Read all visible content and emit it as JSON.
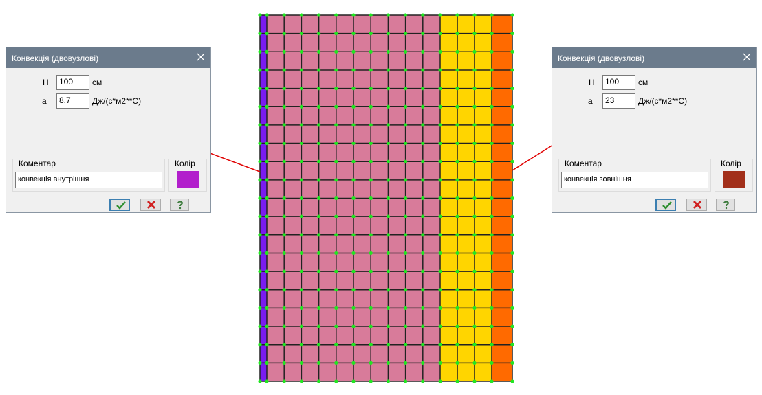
{
  "dialogs": [
    {
      "title": "Конвекція (двовузлові)",
      "fields": [
        {
          "label": "H",
          "value": "100",
          "unit": "см"
        },
        {
          "label": "а",
          "value": "8.7",
          "unit": "Дж/(с*м2**С)"
        }
      ],
      "comment_label": "Коментар",
      "comment": "конвекція внутрішня",
      "color_label": "Колір"
    },
    {
      "title": "Конвекція (двовузлові)",
      "fields": [
        {
          "label": "H",
          "value": "100",
          "unit": "см"
        },
        {
          "label": "а",
          "value": "23",
          "unit": "Дж/(с*м2**С)"
        }
      ],
      "comment_label": "Коментар",
      "comment": "конвекція зовнішня",
      "color_label": "Колір"
    }
  ]
}
